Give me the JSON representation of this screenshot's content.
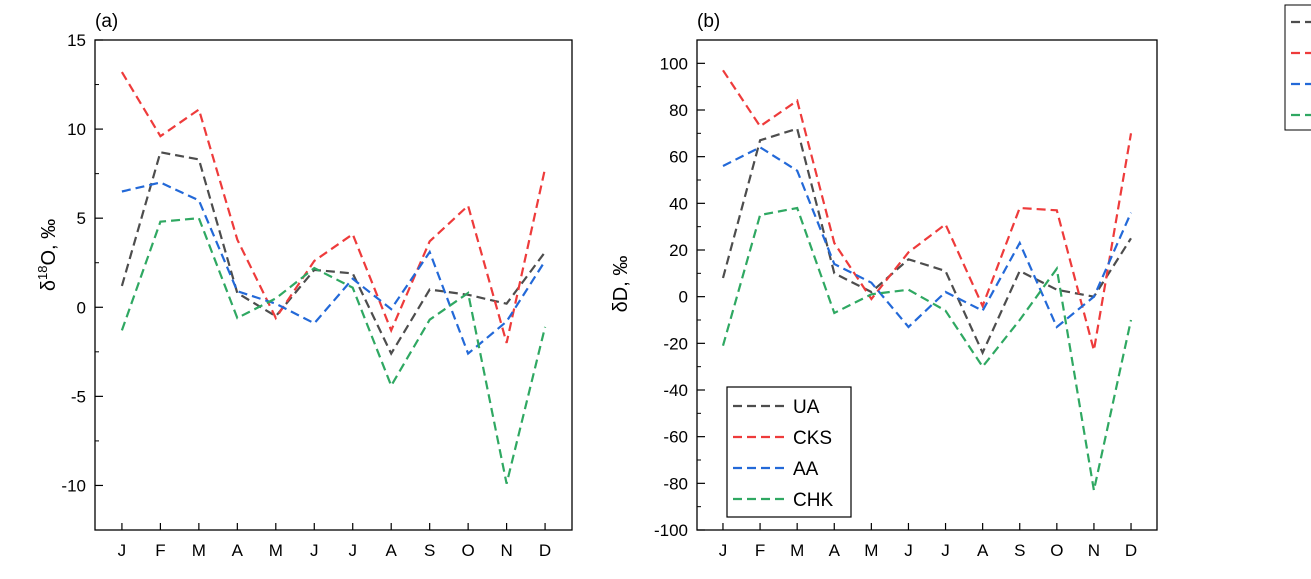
{
  "chart_data": [
    {
      "type": "line",
      "panel_label": "(a)",
      "ylabel": "δ18O, ‰",
      "categories": [
        "J",
        "F",
        "M",
        "A",
        "M",
        "J",
        "J",
        "A",
        "S",
        "O",
        "N",
        "D"
      ],
      "ylim": [
        -12.5,
        15
      ],
      "yticks": [
        15,
        10,
        5,
        0,
        -5,
        -10
      ],
      "ytick_labels": [
        "15",
        "10",
        "5",
        "0",
        "-5",
        "-10"
      ],
      "series": [
        {
          "name": "UA",
          "color": "#4d4d4d",
          "values": [
            1.2,
            8.7,
            8.3,
            0.8,
            -0.5,
            2.1,
            1.9,
            -2.6,
            1.0,
            0.7,
            0.2,
            3.1
          ]
        },
        {
          "name": "CKS",
          "color": "#ee3b3b",
          "values": [
            13.2,
            9.6,
            11.1,
            3.8,
            -0.6,
            2.6,
            4.1,
            -1.3,
            3.7,
            5.7,
            -2.0,
            7.8
          ]
        },
        {
          "name": "AA",
          "color": "#2369d8",
          "values": [
            6.5,
            7.0,
            6.0,
            0.9,
            0.2,
            -0.9,
            1.6,
            -0.1,
            3.1,
            -2.6,
            -0.8,
            2.6
          ]
        },
        {
          "name": "CHK",
          "color": "#2fa862",
          "values": [
            -1.3,
            4.8,
            5.0,
            -0.6,
            0.5,
            2.2,
            1.1,
            -4.4,
            -0.7,
            0.8,
            -9.9,
            -1.1
          ]
        }
      ]
    },
    {
      "type": "line",
      "panel_label": "(b)",
      "ylabel": "δD, ‰",
      "categories": [
        "J",
        "F",
        "M",
        "A",
        "M",
        "J",
        "J",
        "A",
        "S",
        "O",
        "N",
        "D"
      ],
      "ylim": [
        -100,
        110
      ],
      "yticks": [
        100,
        80,
        60,
        40,
        20,
        0,
        -20,
        -40,
        -60,
        -80,
        -100
      ],
      "ytick_labels": [
        "100",
        "80",
        "60",
        "40",
        "20",
        "0",
        "-20",
        "-40",
        "-60",
        "-80",
        "-100"
      ],
      "legend": {
        "position": "lower-left",
        "entries": [
          "UA",
          "CKS",
          "AA",
          "CHK"
        ]
      },
      "series": [
        {
          "name": "UA",
          "color": "#4d4d4d",
          "values": [
            8,
            67,
            72,
            10,
            2,
            16,
            11,
            -24,
            11,
            3,
            0,
            25
          ]
        },
        {
          "name": "CKS",
          "color": "#ee3b3b",
          "values": [
            97,
            73,
            84,
            23,
            -1,
            19,
            31,
            -4,
            38,
            37,
            -23,
            70
          ]
        },
        {
          "name": "AA",
          "color": "#2369d8",
          "values": [
            56,
            64,
            54,
            14,
            6,
            -13,
            2,
            -6,
            23,
            -13,
            0,
            36
          ]
        },
        {
          "name": "CHK",
          "color": "#2fa862",
          "values": [
            -21,
            35,
            38,
            -7,
            1,
            3,
            -6,
            -30,
            -10,
            12,
            -83,
            -10
          ]
        }
      ]
    }
  ]
}
